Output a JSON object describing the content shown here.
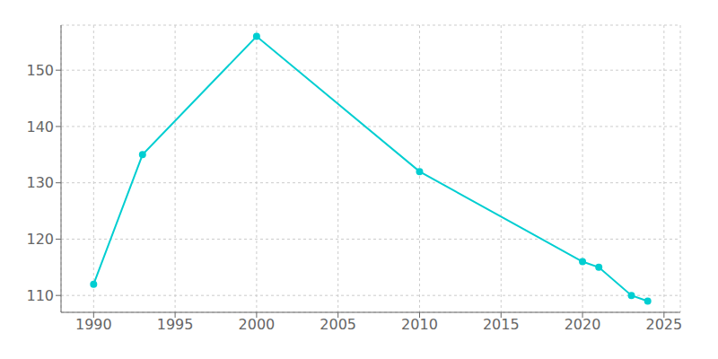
{
  "chart_data": {
    "type": "line",
    "x": [
      1990,
      1993,
      2000,
      2010,
      2020,
      2021,
      2023,
      2024
    ],
    "values": [
      112,
      135,
      156,
      132,
      116,
      115,
      110,
      109
    ],
    "color": "#00CED1",
    "xlim": [
      1988,
      2026
    ],
    "ylim": [
      107,
      158
    ],
    "xticks": [
      1990,
      1995,
      2000,
      2005,
      2010,
      2015,
      2020,
      2025
    ],
    "yticks": [
      110,
      120,
      130,
      140,
      150
    ],
    "grid": true,
    "marker": "circle"
  }
}
